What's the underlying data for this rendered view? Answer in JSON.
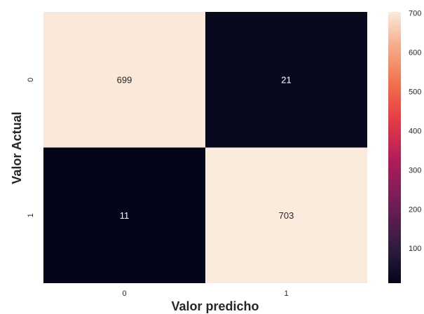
{
  "chart_data": {
    "type": "heatmap",
    "title": "",
    "xlabel": "Valor predicho",
    "ylabel": "Valor Actual",
    "x_categories": [
      "0",
      "1"
    ],
    "y_categories": [
      "0",
      "1"
    ],
    "values": [
      [
        699,
        21
      ],
      [
        11,
        703
      ]
    ],
    "colormap": "rocket",
    "colorbar": {
      "vmin": 11,
      "vmax": 703,
      "ticks": [
        100,
        200,
        300,
        400,
        500,
        600,
        700
      ],
      "tick_labels": [
        "100",
        "200",
        "300",
        "400",
        "500",
        "600",
        "700"
      ]
    },
    "annotations": true,
    "grid": false
  }
}
